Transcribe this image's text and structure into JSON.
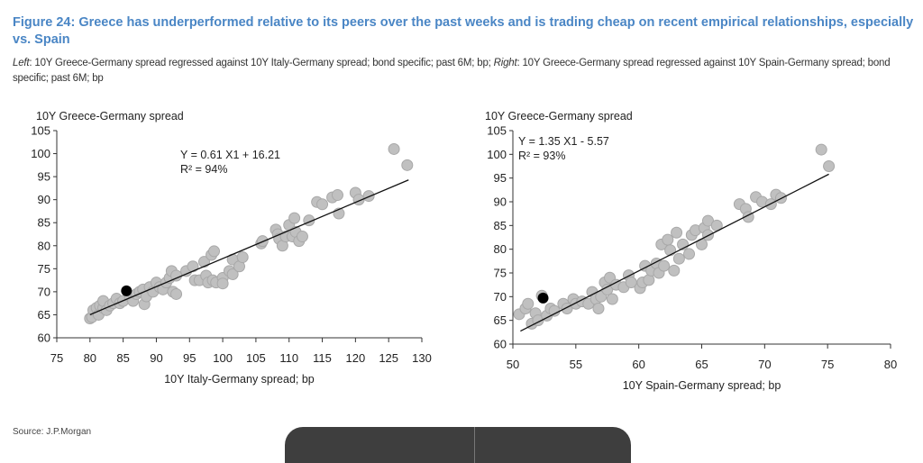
{
  "figure": {
    "title": "Figure 24: Greece has underperformed relative to its peers over the past weeks and is trading cheap on recent empirical relationships, especially vs. Spain",
    "subtitle_left_label": "Left",
    "subtitle_left_text": ": 10Y Greece-Germany spread regressed against 10Y Italy-Germany spread; bond specific; past 6M; bp; ",
    "subtitle_right_label": "Right",
    "subtitle_right_text": ": 10Y Greece-Germany spread regressed against 10Y Spain-Germany spread; bond specific; past 6M; bp",
    "source": "Source: J.P.Morgan",
    "title_color": "#4a86c5"
  },
  "chart_data": [
    {
      "type": "scatter",
      "ylabel": "10Y Greece-Germany spread",
      "xlabel": "10Y Italy-Germany spread; bp",
      "xlim": [
        75,
        130
      ],
      "ylim": [
        60,
        105
      ],
      "xticks": [
        75,
        80,
        85,
        90,
        95,
        100,
        105,
        110,
        115,
        120,
        125,
        130
      ],
      "yticks": [
        60,
        65,
        70,
        75,
        80,
        85,
        90,
        95,
        100,
        105
      ],
      "equation": "Y = 0.61 X1 + 16.21",
      "r2": "R² = 94%",
      "fit": {
        "slope": 0.61,
        "intercept": 16.21,
        "x_range": [
          80,
          128
        ]
      },
      "point_color": "#c0c0c0",
      "highlight_color": "#000000",
      "points": [
        [
          80,
          64.2
        ],
        [
          80.3,
          64.5
        ],
        [
          80.5,
          66
        ],
        [
          81,
          66.5
        ],
        [
          81.3,
          65
        ],
        [
          81.5,
          67
        ],
        [
          82,
          66.5
        ],
        [
          82,
          68
        ],
        [
          82.5,
          66
        ],
        [
          83,
          67
        ],
        [
          83.5,
          67.5
        ],
        [
          84,
          68.5
        ],
        [
          84.5,
          67.5
        ],
        [
          85,
          68
        ],
        [
          86,
          69
        ],
        [
          86.5,
          68
        ],
        [
          87,
          69.5
        ],
        [
          87.5,
          70
        ],
        [
          88,
          70.5
        ],
        [
          88.2,
          67.3
        ],
        [
          88.5,
          69
        ],
        [
          89,
          71
        ],
        [
          89.5,
          70
        ],
        [
          90,
          72
        ],
        [
          90.5,
          71
        ],
        [
          91,
          70.5
        ],
        [
          91.5,
          72
        ],
        [
          92,
          73
        ],
        [
          92.3,
          74.5
        ],
        [
          92.5,
          70
        ],
        [
          93,
          69.5
        ],
        [
          93,
          73.5
        ],
        [
          94.5,
          74.5
        ],
        [
          95.5,
          75.5
        ],
        [
          95.8,
          72.5
        ],
        [
          96.5,
          72.5
        ],
        [
          97.2,
          76.5
        ],
        [
          97.5,
          73.5
        ],
        [
          97.8,
          72
        ],
        [
          98.3,
          78
        ],
        [
          98.7,
          78.8
        ],
        [
          98.5,
          72.5
        ],
        [
          99,
          72
        ],
        [
          100,
          73
        ],
        [
          100,
          71.8
        ],
        [
          101,
          74.5
        ],
        [
          101.5,
          77
        ],
        [
          101.5,
          73.8
        ],
        [
          102.5,
          75.5
        ],
        [
          103,
          77.5
        ],
        [
          105.8,
          80.5
        ],
        [
          106,
          81
        ],
        [
          108,
          83.5
        ],
        [
          108.3,
          82.5
        ],
        [
          108.5,
          81.5
        ],
        [
          109,
          80
        ],
        [
          109.5,
          82
        ],
        [
          110,
          84.5
        ],
        [
          110.5,
          82
        ],
        [
          110.8,
          86
        ],
        [
          111,
          83
        ],
        [
          111.5,
          81
        ],
        [
          112,
          82
        ],
        [
          113,
          85.5
        ],
        [
          114.2,
          89.5
        ],
        [
          115,
          89
        ],
        [
          116.5,
          90.5
        ],
        [
          117.3,
          91
        ],
        [
          117.5,
          87
        ],
        [
          120,
          91.5
        ],
        [
          120.5,
          90
        ],
        [
          122,
          90.8
        ],
        [
          125.8,
          101
        ],
        [
          127.8,
          97.5
        ]
      ],
      "highlight": [
        85.5,
        70.2
      ]
    },
    {
      "type": "scatter",
      "ylabel": "10Y Greece-Germany spread",
      "xlabel": "10Y Spain-Germany spread; bp",
      "xlim": [
        50,
        80
      ],
      "ylim": [
        60,
        105
      ],
      "xticks": [
        50,
        55,
        60,
        65,
        70,
        75,
        80
      ],
      "yticks": [
        60,
        65,
        70,
        75,
        80,
        85,
        90,
        95,
        100,
        105
      ],
      "equation": "Y = 1.35 X1 - 5.57",
      "r2": "R² = 93%",
      "fit": {
        "slope": 1.35,
        "intercept": -5.57,
        "x_range": [
          50.6,
          75.1
        ]
      },
      "point_color": "#c0c0c0",
      "highlight_color": "#000000",
      "points": [
        [
          50.5,
          66.3
        ],
        [
          51,
          67.5
        ],
        [
          51.2,
          68.5
        ],
        [
          51.5,
          64.3
        ],
        [
          51.8,
          66.5
        ],
        [
          52,
          65
        ],
        [
          52.3,
          70.2
        ],
        [
          52.7,
          66
        ],
        [
          53,
          67.5
        ],
        [
          53.3,
          67
        ],
        [
          54,
          68.5
        ],
        [
          54.3,
          67.5
        ],
        [
          54.8,
          69.5
        ],
        [
          55,
          68.5
        ],
        [
          55.5,
          69
        ],
        [
          56,
          68.5
        ],
        [
          56.3,
          71
        ],
        [
          56.6,
          69.5
        ],
        [
          56.8,
          67.5
        ],
        [
          57,
          70
        ],
        [
          57.3,
          73
        ],
        [
          57.5,
          71.5
        ],
        [
          57.7,
          74
        ],
        [
          57.9,
          69.5
        ],
        [
          58.2,
          72.5
        ],
        [
          58.8,
          72
        ],
        [
          59.2,
          74.5
        ],
        [
          59.4,
          73
        ],
        [
          60.1,
          71.8
        ],
        [
          60.3,
          73
        ],
        [
          60.5,
          76.5
        ],
        [
          60.8,
          73.5
        ],
        [
          61,
          75.5
        ],
        [
          61.4,
          77
        ],
        [
          61.6,
          75
        ],
        [
          61.8,
          81
        ],
        [
          62,
          76.5
        ],
        [
          62.3,
          82
        ],
        [
          62.5,
          79.8
        ],
        [
          62.8,
          75.5
        ],
        [
          63,
          83.5
        ],
        [
          63.2,
          78
        ],
        [
          63.5,
          81
        ],
        [
          64,
          79
        ],
        [
          64.2,
          83
        ],
        [
          64.5,
          84
        ],
        [
          65,
          81
        ],
        [
          65.2,
          84.5
        ],
        [
          65.5,
          86
        ],
        [
          65.5,
          83
        ],
        [
          66.2,
          85
        ],
        [
          68,
          89.5
        ],
        [
          68.5,
          88.5
        ],
        [
          68.7,
          86.8
        ],
        [
          69.3,
          91
        ],
        [
          69.8,
          90
        ],
        [
          70.5,
          89.5
        ],
        [
          70.9,
          91.5
        ],
        [
          71.3,
          90.8
        ],
        [
          74.5,
          101
        ],
        [
          75.1,
          97.5
        ]
      ],
      "highlight": [
        52.4,
        69.7
      ]
    }
  ]
}
